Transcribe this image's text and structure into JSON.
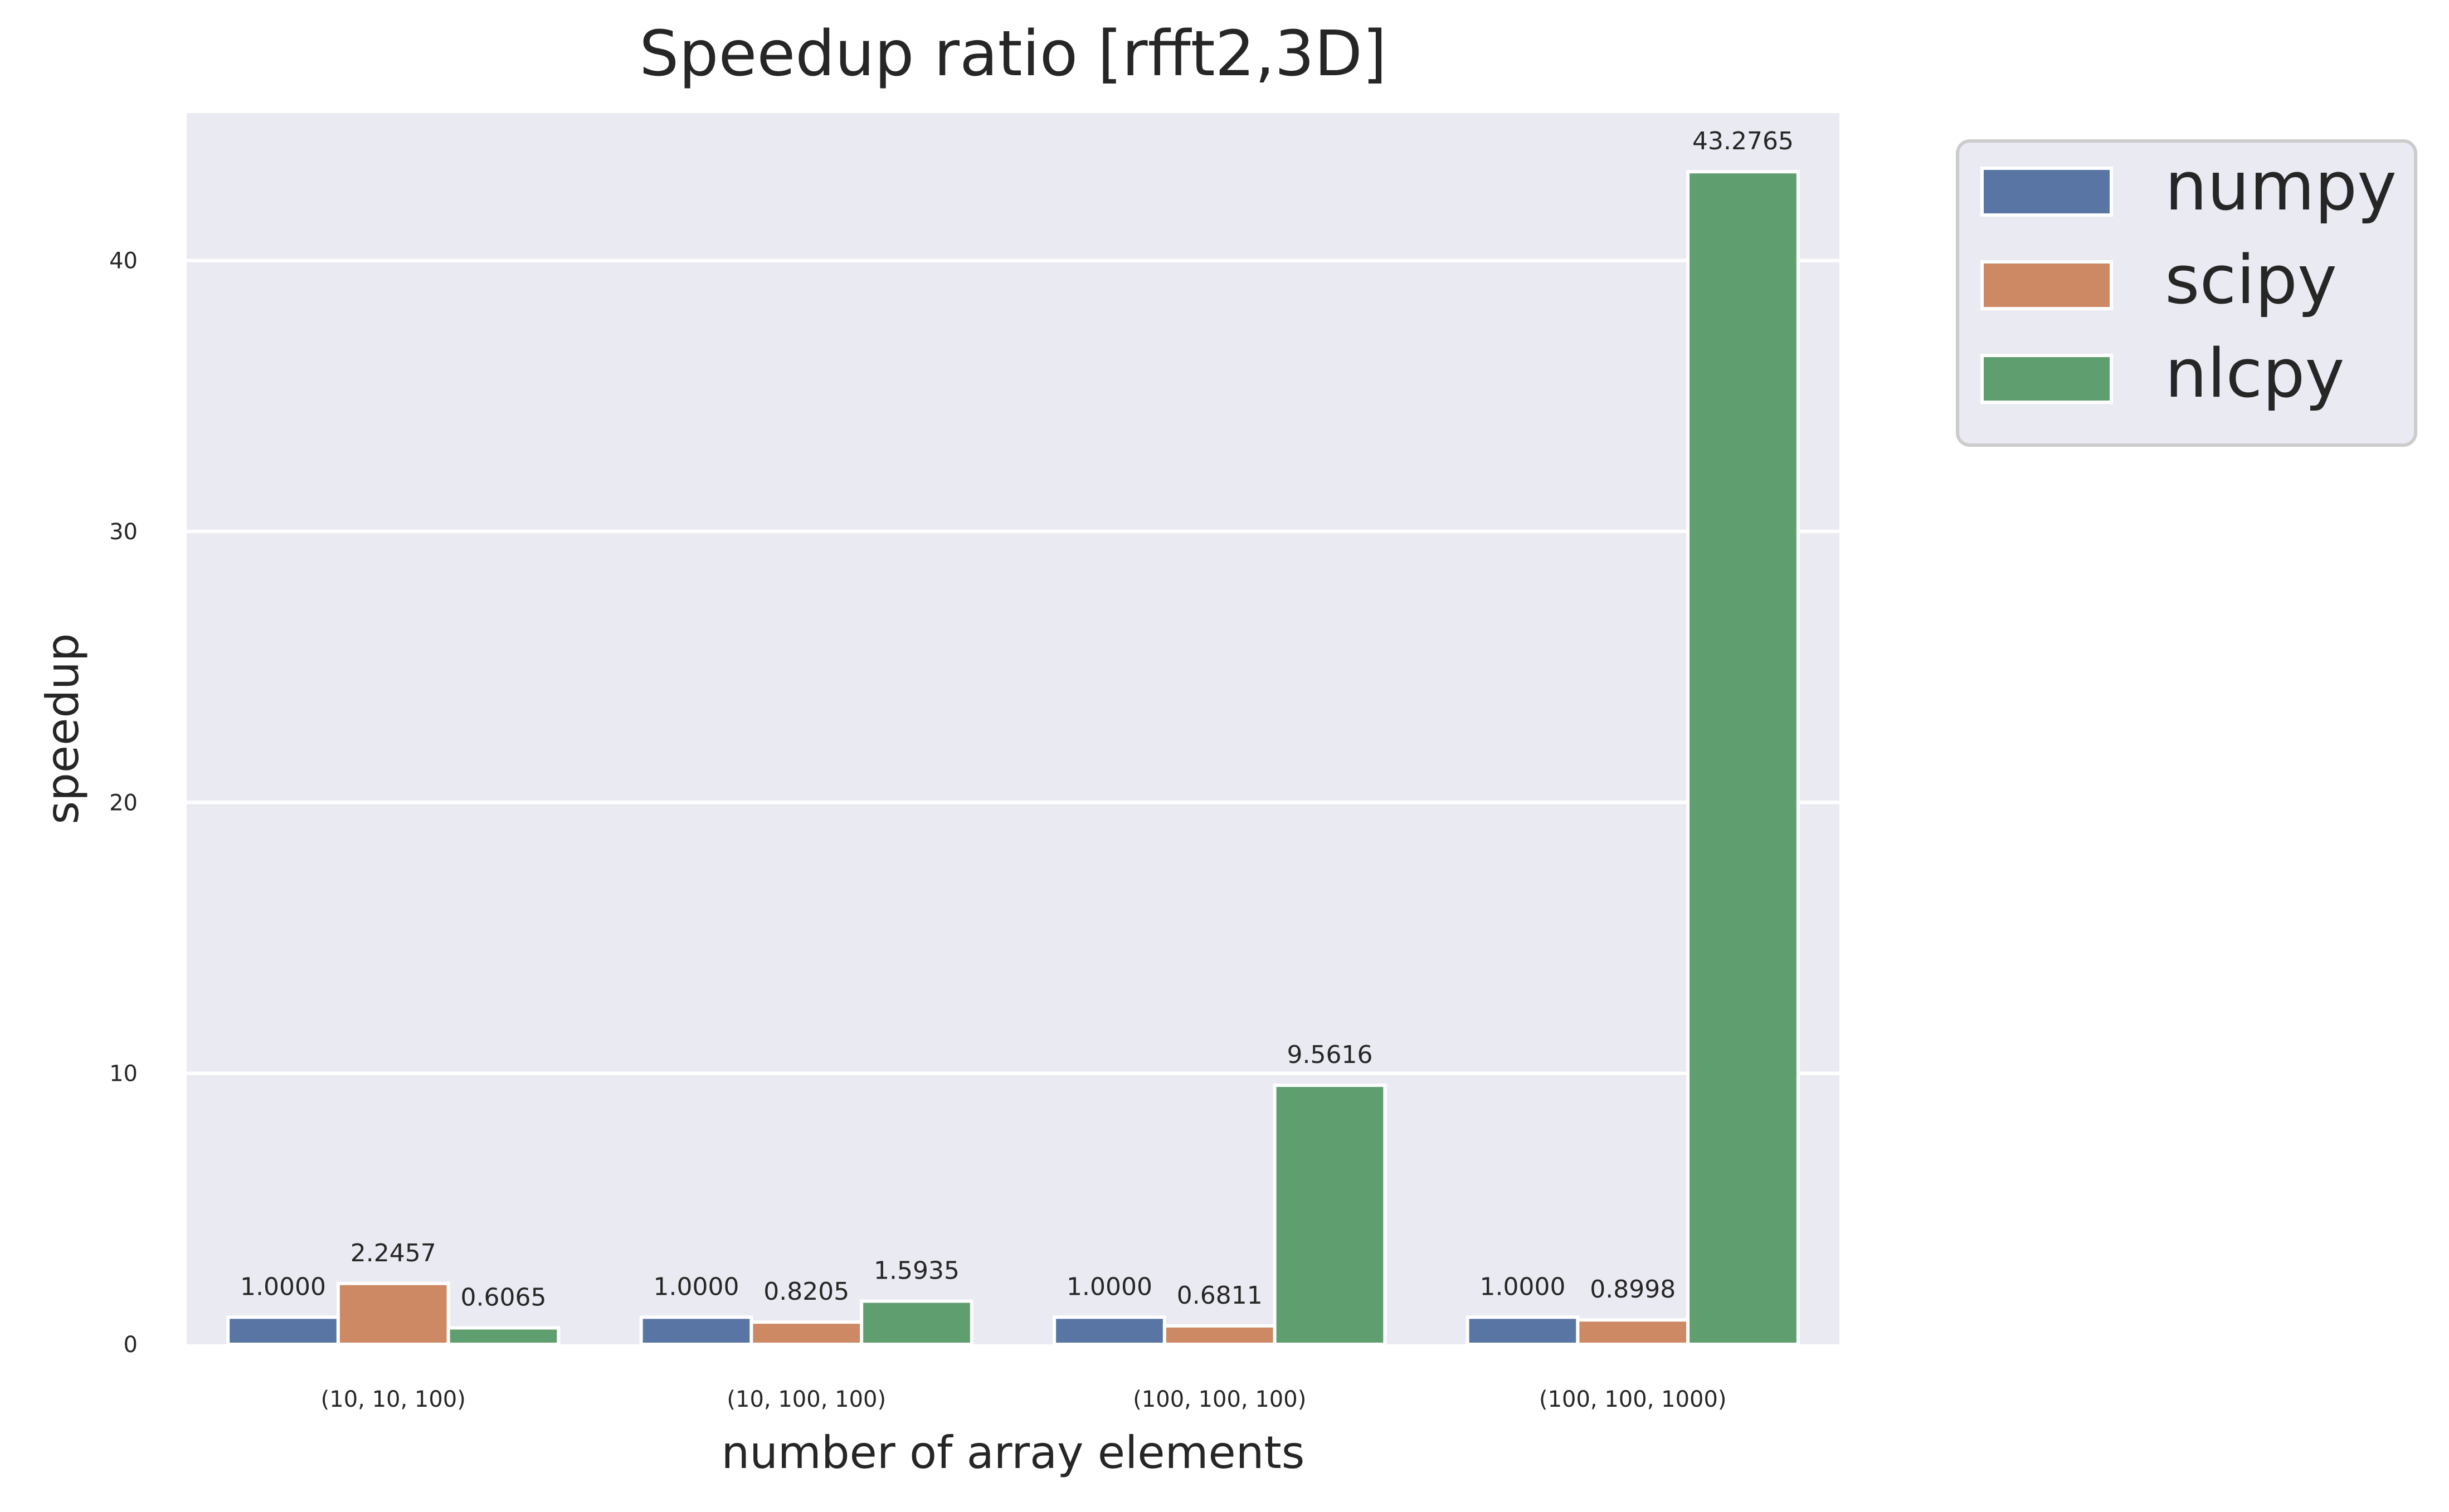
{
  "chart_data": {
    "type": "bar",
    "title": "Speedup ratio [rfft2,3D]",
    "xlabel": "number of array elements",
    "ylabel": "speedup",
    "categories": [
      "(10, 10, 100)",
      "(10, 100, 100)",
      "(100, 100, 100)",
      "(100, 100, 1000)"
    ],
    "series": [
      {
        "name": "numpy",
        "color": "#5875a4",
        "values": [
          1.0,
          1.0,
          1.0,
          1.0
        ],
        "labels": [
          "1.0000",
          "1.0000",
          "1.0000",
          "1.0000"
        ]
      },
      {
        "name": "scipy",
        "color": "#cc8963",
        "values": [
          2.2457,
          0.8205,
          0.6811,
          0.8998
        ],
        "labels": [
          "2.2457",
          "0.8205",
          "0.6811",
          "0.8998"
        ]
      },
      {
        "name": "nlcpy",
        "color": "#5f9e6e",
        "values": [
          0.6065,
          1.5935,
          9.5616,
          43.2765
        ],
        "labels": [
          "0.6065",
          "1.5935",
          "9.5616",
          "43.2765"
        ]
      }
    ],
    "ylim": [
      0,
      45.44
    ],
    "yticks": [
      0,
      10,
      20,
      30,
      40
    ],
    "grid": true,
    "legend_position": "outside-top-right",
    "plot_background": "#eaeaf2"
  }
}
